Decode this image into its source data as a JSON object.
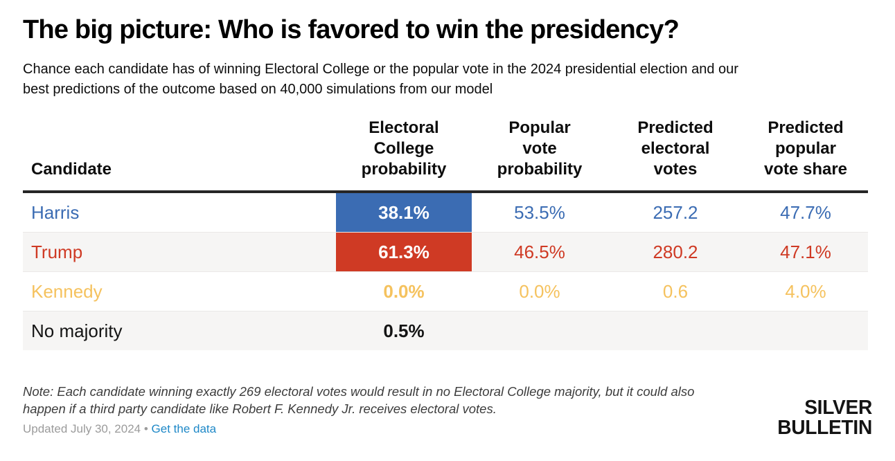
{
  "page": {
    "title": "The big picture: Who is favored to win the presidency?",
    "subtitle_line1": "Chance each candidate has of winning Electoral College or the popular vote in the 2024 presidential election and our",
    "subtitle_line2": "best predictions of the outcome based on 40,000 simulations from our model"
  },
  "table": {
    "headers": {
      "candidate": "Candidate",
      "electoral_college_probability": "Electoral\nCollege\nprobability",
      "popular_vote_probability": "Popular\nvote\nprobability",
      "predicted_electoral_votes": "Predicted\nelectoral\nvotes",
      "predicted_popular_vote_share": "Predicted\npopular\nvote share"
    },
    "rows": [
      {
        "candidate": "Harris",
        "electoral_college_probability": "38.1%",
        "popular_vote_probability": "53.5%",
        "predicted_electoral_votes": "257.2",
        "predicted_popular_vote_share": "47.7%"
      },
      {
        "candidate": "Trump",
        "electoral_college_probability": "61.3%",
        "popular_vote_probability": "46.5%",
        "predicted_electoral_votes": "280.2",
        "predicted_popular_vote_share": "47.1%"
      },
      {
        "candidate": "Kennedy",
        "electoral_college_probability": "0.0%",
        "popular_vote_probability": "0.0%",
        "predicted_electoral_votes": "0.6",
        "predicted_popular_vote_share": "4.0%"
      },
      {
        "candidate": "No majority",
        "electoral_college_probability": "0.5%",
        "popular_vote_probability": "",
        "predicted_electoral_votes": "",
        "predicted_popular_vote_share": ""
      }
    ]
  },
  "chart_data": {
    "type": "table",
    "title": "The big picture: Who is favored to win the presidency?",
    "subtitle": "Chance each candidate has of winning Electoral College or the popular vote in the 2024 presidential election and our best predictions of the outcome based on 40,000 simulations from our model",
    "columns": [
      "Candidate",
      "Electoral College probability",
      "Popular vote probability",
      "Predicted electoral votes",
      "Predicted popular vote share"
    ],
    "rows": [
      [
        "Harris",
        "38.1%",
        "53.5%",
        "257.2",
        "47.7%"
      ],
      [
        "Trump",
        "61.3%",
        "46.5%",
        "280.2",
        "47.1%"
      ],
      [
        "Kennedy",
        "0.0%",
        "0.0%",
        "0.6",
        "4.0%"
      ],
      [
        "No majority",
        "0.5%",
        null,
        null,
        null
      ]
    ],
    "highlighted_cells": [
      {
        "row": "Harris",
        "column": "Electoral College probability",
        "value": "38.1%",
        "fill": "#3b6cb3"
      },
      {
        "row": "Trump",
        "column": "Electoral College probability",
        "value": "61.3%",
        "fill": "#cf3a24"
      }
    ]
  },
  "footer": {
    "note_line1": "Note: Each candidate winning exactly 269 electoral votes would result in no Electoral College majority, but it could also",
    "note_line2": "happen if a third party candidate like Robert F. Kennedy Jr. receives electoral votes.",
    "updated_text": "Updated July 30, 2024",
    "separator": "•",
    "link_text": "Get the data",
    "logo_line1": "SILVER",
    "logo_line2": "BULLETIN"
  },
  "colors": {
    "harris_blue": "#3b6cb3",
    "trump_red": "#cf3a24",
    "kennedy_gold": "#f5c25e",
    "no_majority_black": "#141414",
    "row_stripe_gray": "#f6f5f4",
    "header_rule_dark": "#262626",
    "link_blue": "#1e88c7",
    "muted_gray": "#9b9b9b"
  }
}
